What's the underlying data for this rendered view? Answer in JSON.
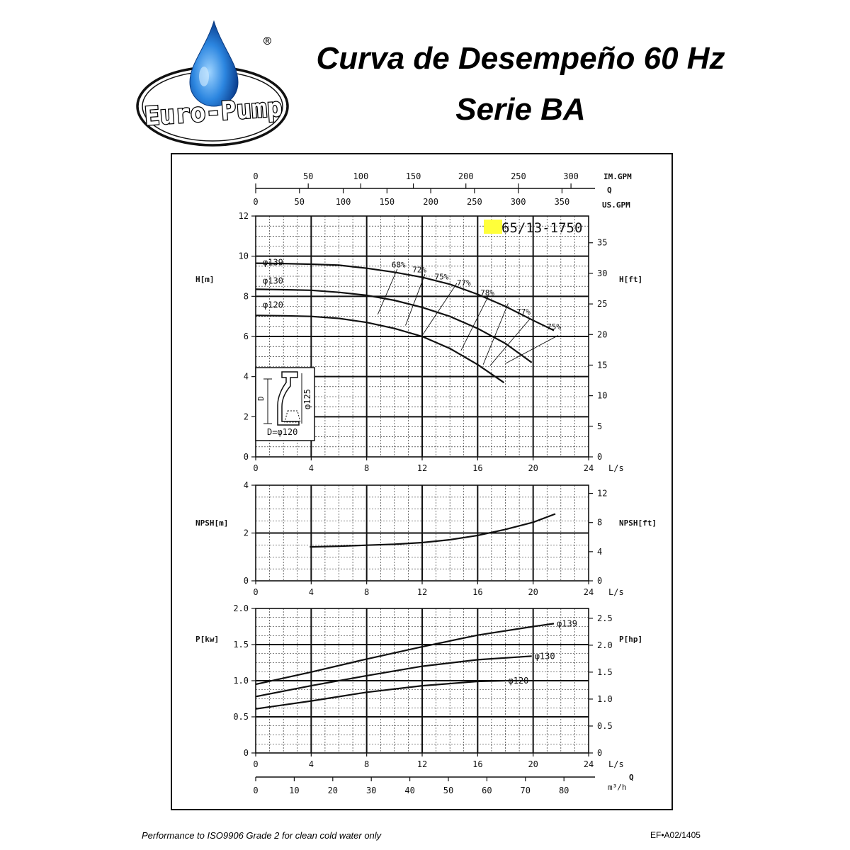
{
  "brand": {
    "name": "Euro-Pump",
    "registered": "®"
  },
  "title": "Curva de Desempeño 60 Hz",
  "subtitle": "Serie BA",
  "footer": {
    "left": "Performance to ISO9906 Grade 2 for clean cold water only",
    "right": "EF•A02/1405"
  },
  "chart_data": [
    {
      "type": "line",
      "model": "65/13-1750",
      "x_unit": "L/s",
      "xlim": [
        0,
        24
      ],
      "x_ticks": [
        0,
        4,
        8,
        12,
        16,
        20,
        24
      ],
      "ylabel": "H[m]",
      "ylabel_right": "H[ft]",
      "ylim": [
        0,
        12
      ],
      "y_ticks": [
        0,
        2,
        4,
        6,
        8,
        10,
        12
      ],
      "y_ticks_right": [
        0,
        5,
        10,
        15,
        20,
        25,
        30,
        35
      ],
      "top_axes": [
        {
          "label": "IM.GPM",
          "ticks": [
            0,
            50,
            100,
            150,
            200,
            250,
            300
          ]
        },
        {
          "label": "Q",
          "ticks": []
        },
        {
          "label": "US.GPM",
          "ticks": [
            0,
            50,
            100,
            150,
            200,
            250,
            300,
            350
          ]
        }
      ],
      "series": [
        {
          "name": "φ139",
          "x": [
            0,
            2,
            4,
            6,
            8,
            10,
            12,
            14,
            16,
            18,
            20,
            21.5
          ],
          "y": [
            9.65,
            9.63,
            9.6,
            9.55,
            9.4,
            9.2,
            8.95,
            8.6,
            8.1,
            7.5,
            6.8,
            6.3
          ]
        },
        {
          "name": "φ130",
          "x": [
            0,
            2,
            4,
            6,
            8,
            10,
            12,
            14,
            16,
            18,
            19.9
          ],
          "y": [
            8.35,
            8.33,
            8.3,
            8.2,
            8.05,
            7.8,
            7.45,
            7.0,
            6.4,
            5.65,
            4.7
          ]
        },
        {
          "name": "φ120",
          "x": [
            0,
            2,
            4,
            6,
            8,
            10,
            12,
            14,
            16,
            17.9
          ],
          "y": [
            7.05,
            7.03,
            7.0,
            6.9,
            6.7,
            6.4,
            6.0,
            5.4,
            4.6,
            3.7
          ]
        }
      ],
      "efficiency_labels": [
        "68%",
        "72%",
        "75%",
        "77%",
        "78%",
        "77%",
        "75%"
      ],
      "inset": {
        "dimension": "φ125",
        "axis": "D",
        "caption": "D=φ120"
      }
    },
    {
      "type": "line",
      "x_unit": "L/s",
      "xlim": [
        0,
        24
      ],
      "x_ticks": [
        0,
        4,
        8,
        12,
        16,
        20,
        24
      ],
      "ylabel": "NPSH[m]",
      "ylabel_right": "NPSH[ft]",
      "ylim": [
        0,
        4
      ],
      "y_ticks": [
        0,
        2,
        4
      ],
      "y_ticks_right": [
        0,
        4,
        8,
        12
      ],
      "series": [
        {
          "name": "",
          "x": [
            3.9,
            6,
            8,
            10,
            12,
            14,
            16,
            18,
            20,
            21.6
          ],
          "y": [
            1.42,
            1.45,
            1.49,
            1.53,
            1.6,
            1.72,
            1.9,
            2.15,
            2.45,
            2.8
          ]
        }
      ]
    },
    {
      "type": "line",
      "x_unit": "L/s",
      "xlim": [
        0,
        24
      ],
      "x_ticks": [
        0,
        4,
        8,
        12,
        16,
        20,
        24
      ],
      "ylabel": "P[kw]",
      "ylabel_right": "P[hp]",
      "ylim": [
        0,
        2.0
      ],
      "y_ticks": [
        "0",
        "0.5",
        "1.0",
        "1.5",
        "2.0"
      ],
      "y_ticks_right": [
        "0",
        "0.5",
        "1.0",
        "1.5",
        "2.0",
        "2.5"
      ],
      "bottom_axis": {
        "label": "m³/h",
        "q_label": "Q",
        "ticks": [
          0,
          10,
          20,
          30,
          40,
          50,
          60,
          70,
          80
        ]
      },
      "series": [
        {
          "name": "φ139",
          "x": [
            0,
            4,
            8,
            12,
            16,
            20,
            21.5
          ],
          "y": [
            0.95,
            1.12,
            1.3,
            1.47,
            1.63,
            1.75,
            1.79
          ]
        },
        {
          "name": "φ130",
          "x": [
            0,
            4,
            8,
            12,
            16,
            19.9
          ],
          "y": [
            0.78,
            0.93,
            1.07,
            1.2,
            1.29,
            1.34
          ]
        },
        {
          "name": "φ120",
          "x": [
            0,
            4,
            8,
            12,
            16,
            18
          ],
          "y": [
            0.61,
            0.72,
            0.84,
            0.93,
            0.99,
            1.0
          ]
        }
      ]
    }
  ],
  "colors": {
    "highlight": "#ffff3a",
    "ink": "#111111",
    "drop": "#1b6fd0"
  }
}
